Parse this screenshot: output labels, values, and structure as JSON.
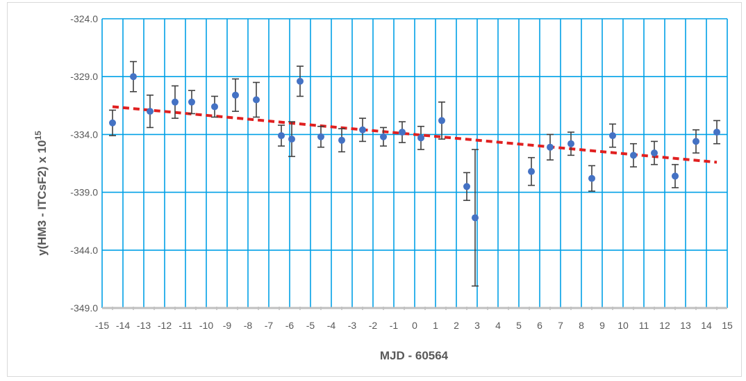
{
  "chart_data": {
    "type": "scatter",
    "title": "",
    "xlabel": "MJD - 60564",
    "ylabel": "y(HM3 - ITCsF2) x 10",
    "ylabel_superscript": "15",
    "xlim": [
      -15,
      15
    ],
    "ylim": [
      -349,
      -324
    ],
    "x_ticks": [
      -15,
      -14,
      -13,
      -12,
      -11,
      -10,
      -9,
      -8,
      -7,
      -6,
      -5,
      -4,
      -3,
      -2,
      -1,
      0,
      1,
      2,
      3,
      4,
      5,
      6,
      7,
      8,
      9,
      10,
      11,
      12,
      13,
      14,
      15
    ],
    "y_ticks": [
      -349.0,
      -344.0,
      -339.0,
      -334.0,
      -329.0,
      -324.0
    ],
    "y_tick_labels": [
      "-349.0",
      "-344.0",
      "-339.0",
      "-334.0",
      "-329.0",
      "-324.0"
    ],
    "grid": true,
    "colors": {
      "grid": "#00a0e6",
      "points": "#4472c4",
      "trendline": "#e02020",
      "error_bars": "#404040"
    },
    "series": [
      {
        "x": [
          -14.5,
          -13.5,
          -12.7,
          -11.5,
          -10.7,
          -9.6,
          -8.6,
          -7.6,
          -6.4,
          -5.9,
          -5.5,
          -4.5,
          -3.5,
          -2.5,
          -1.5,
          -0.6,
          0.3,
          1.3,
          2.5,
          2.9,
          5.6,
          6.5,
          7.5,
          8.5,
          9.5,
          10.5,
          11.5,
          12.5,
          13.5,
          14.5
        ],
        "y": [
          -333.0,
          -329.0,
          -332.0,
          -331.2,
          -331.2,
          -331.6,
          -330.6,
          -331.0,
          -334.1,
          -334.4,
          -329.4,
          -334.2,
          -334.5,
          -333.6,
          -334.2,
          -333.8,
          -334.3,
          -332.8,
          -338.5,
          -341.2,
          -337.2,
          -335.1,
          -334.8,
          -337.8,
          -334.1,
          -335.8,
          -335.6,
          -337.6,
          -334.6,
          -333.8
        ],
        "err": [
          1.1,
          1.3,
          1.4,
          1.4,
          1.0,
          0.9,
          1.4,
          1.5,
          0.9,
          1.5,
          1.3,
          0.9,
          1.0,
          1.0,
          0.8,
          0.9,
          1.0,
          1.6,
          1.2,
          5.9,
          1.2,
          1.1,
          1.0,
          1.1,
          1.0,
          1.0,
          1.0,
          1.0,
          1.0,
          1.0
        ]
      }
    ],
    "trendline": {
      "type": "linear",
      "style": "dashed",
      "x": [
        -14.5,
        14.5
      ],
      "y": [
        -331.6,
        -336.4
      ]
    }
  }
}
